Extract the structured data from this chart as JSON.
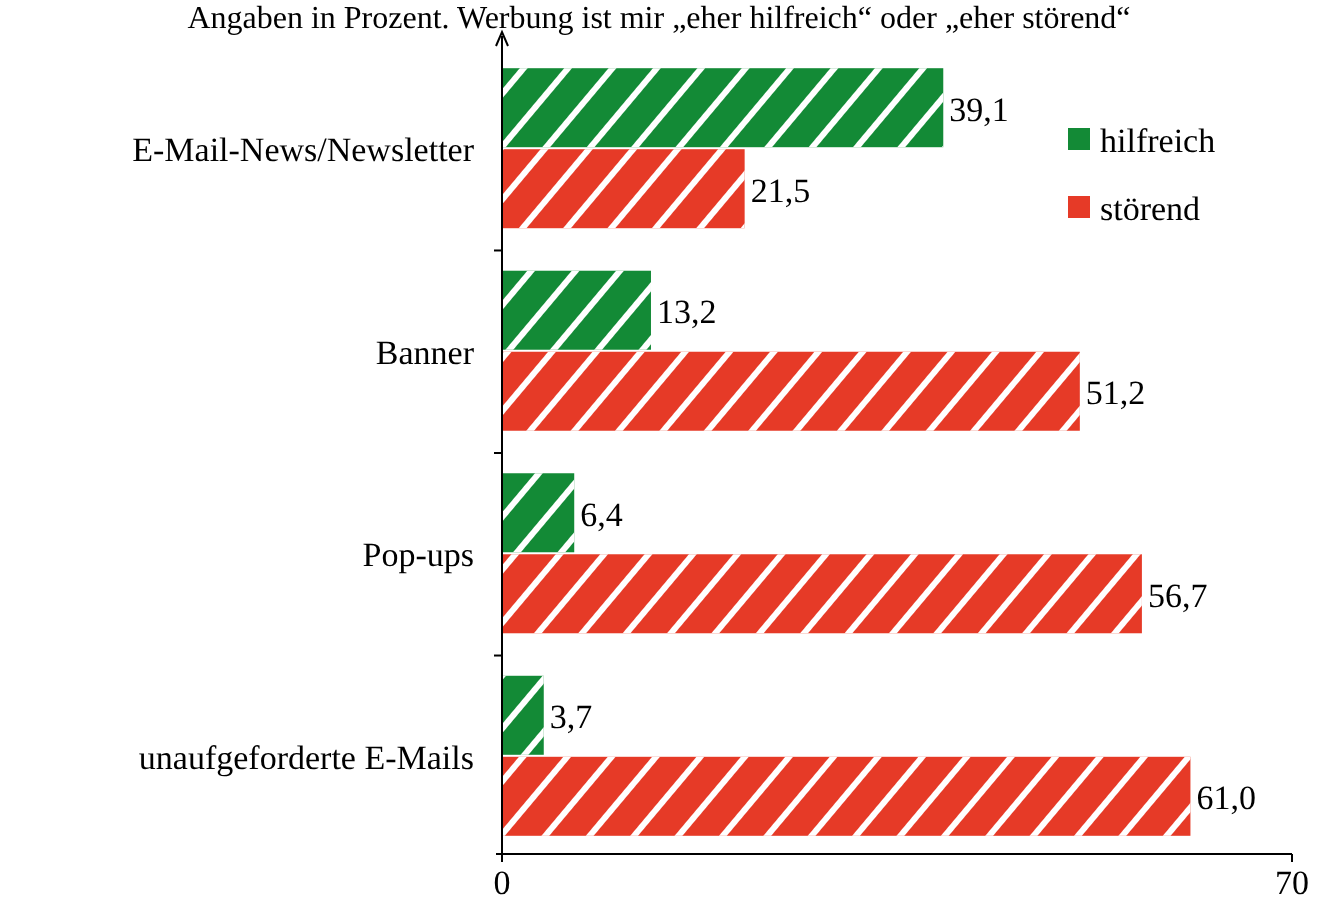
{
  "chart_data": {
    "type": "bar",
    "orientation": "horizontal",
    "subtitle": "Angaben in Prozent. Werbung ist mir „eher hilfreich“ oder „eher störend“",
    "categories": [
      "E-Mail-News/Newsletter",
      "Banner",
      "Pop-ups",
      "unaufgeforderte E-Mails"
    ],
    "series": [
      {
        "name": "hilfreich",
        "color": "#138a36",
        "values": [
          39.1,
          13.2,
          6.4,
          3.7
        ],
        "value_labels": [
          "39,1",
          "13,2",
          "6,4",
          "3,7"
        ]
      },
      {
        "name": "störend",
        "color": "#e63a27",
        "values": [
          21.5,
          51.2,
          56.7,
          61.0
        ],
        "value_labels": [
          "21,5",
          "51,2",
          "56,7",
          "61,0"
        ]
      }
    ],
    "xlim": [
      0,
      70
    ],
    "xticks": [
      0,
      70
    ],
    "legend": "top right"
  }
}
